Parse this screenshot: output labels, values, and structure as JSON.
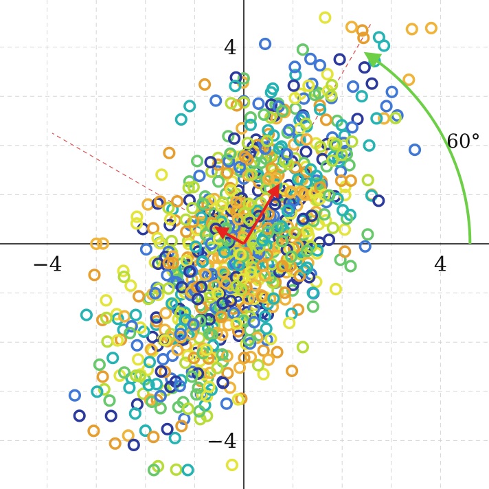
{
  "chart_data": {
    "type": "scatter",
    "title": "",
    "xlabel": "",
    "ylabel": "",
    "xlim": [
      -4.75,
      5.0
    ],
    "ylim": [
      -4.9,
      4.9
    ],
    "grid": true,
    "x_ticks": [
      {
        "value": -4,
        "label": "−4"
      },
      {
        "value": 4,
        "label": "4"
      }
    ],
    "y_ticks": [
      {
        "value": 4,
        "label": "4"
      },
      {
        "value": -4,
        "label": "−4"
      }
    ],
    "principal_axis_angle_deg": 60,
    "angle_annotation": "60°",
    "eigenvectors": [
      {
        "dx": 0.7,
        "dy": 1.18
      },
      {
        "dx": -0.55,
        "dy": 0.32
      }
    ],
    "colors": {
      "accent_arrow": "#6ccf45",
      "eigenvector": "#e8231f",
      "principal_axes": "#d94a4a",
      "point_palette": [
        "#2b3a9c",
        "#3f78d6",
        "#26b3b3",
        "#67c96b",
        "#b8dc3a",
        "#e3e43c",
        "#f0b43a",
        "#e69f2e"
      ]
    },
    "distribution": {
      "n": 1000,
      "mean": [
        0,
        0
      ],
      "covariance": [
        [
          1.4,
          1.24
        ],
        [
          1.24,
          2.8
        ]
      ]
    },
    "points": [
      [
        2.75,
        4.2
      ],
      [
        2.85,
        4.03
      ],
      [
        1.2,
        3.95
      ],
      [
        1.95,
        3.75
      ],
      [
        1.7,
        3.45
      ],
      [
        1.45,
        3.1
      ],
      [
        1.15,
        3.05
      ],
      [
        2.4,
        3.0
      ],
      [
        2.9,
        2.8
      ],
      [
        2.85,
        2.55
      ],
      [
        2.7,
        2.55
      ],
      [
        1.9,
        2.5
      ],
      [
        -1.1,
        2.8
      ],
      [
        2.55,
        2.0
      ],
      [
        2.05,
        2.2
      ],
      [
        2.6,
        1.0
      ],
      [
        -3.0,
        0.0
      ],
      [
        -2.8,
        -1.15
      ],
      [
        -2.45,
        -1.75
      ],
      [
        -2.5,
        -1.95
      ],
      [
        -2.15,
        -2.35
      ],
      [
        -2.7,
        -3.5
      ],
      [
        -2.35,
        -3.9
      ],
      [
        -1.4,
        -3.95
      ],
      [
        -2.0,
        -3.8
      ],
      [
        -0.75,
        -3.05
      ],
      [
        -0.75,
        -3.5
      ],
      [
        -0.35,
        -3.25
      ],
      [
        -0.05,
        -3.15
      ],
      [
        0.4,
        -2.65
      ],
      [
        1.2,
        -2.1
      ],
      [
        -2.45,
        -0.55
      ],
      [
        -2.3,
        -0.85
      ],
      [
        -2.05,
        0.3
      ],
      [
        -1.95,
        0.8
      ],
      [
        -1.45,
        0.7
      ],
      [
        0.0,
        2.9
      ],
      [
        0.3,
        2.85
      ],
      [
        0.7,
        2.85
      ],
      [
        1.05,
        2.75
      ]
    ]
  }
}
